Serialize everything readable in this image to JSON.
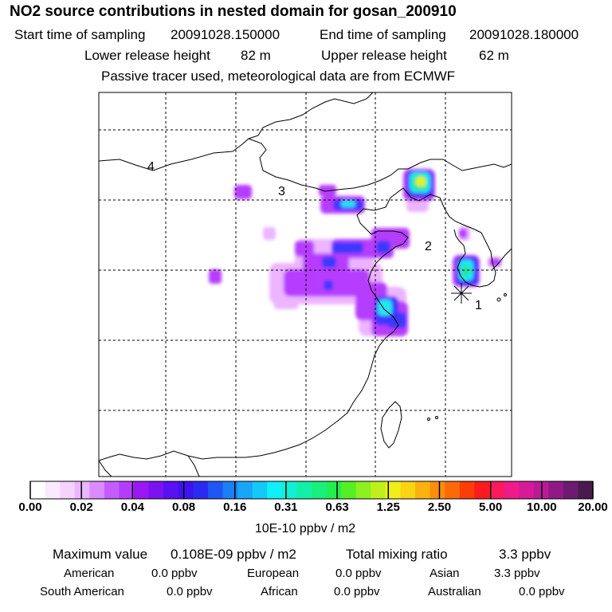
{
  "header": {
    "title": "NO2 source contributions in nested domain for gosan_200910",
    "start_label": "Start time of sampling",
    "start_value": "20091028.150000",
    "end_label": "End time of sampling",
    "end_value": "20091028.180000",
    "lower_label": "Lower release height",
    "lower_value": "82 m",
    "upper_label": "Upper release height",
    "upper_value": "62 m",
    "note": "Passive tracer used, meteorological data are from ECMWF"
  },
  "map": {
    "region_labels": [
      "1",
      "2",
      "3",
      "4"
    ],
    "colors": {
      "coast": "#000000",
      "grid": "#000000",
      "light_violet": "#e9a8ff",
      "violet": "#b63cff",
      "blue": "#3c37ff",
      "cyan": "#21e6f0",
      "green": "#22e88a",
      "yellow": "#e8f020"
    }
  },
  "colorbar": {
    "tick_labels": [
      "0.00",
      "0.02",
      "0.04",
      "0.08",
      "0.16",
      "0.31",
      "0.63",
      "1.25",
      "2.50",
      "5.00",
      "10.00",
      "20.00"
    ],
    "colors": [
      "#ffffff",
      "#fbe9ff",
      "#f5d2ff",
      "#eab6ff",
      "#d98bff",
      "#c45cff",
      "#b53cff",
      "#9b16f4",
      "#7a12f2",
      "#5a10f1",
      "#3d14ef",
      "#2a2bf2",
      "#1f56f4",
      "#1b7ff5",
      "#17a6f7",
      "#13c9f8",
      "#0ff0f8",
      "#0ff0d4",
      "#12f0a8",
      "#18ef7c",
      "#22ee4e",
      "#55ef24",
      "#8cf020",
      "#c0f01c",
      "#f0f018",
      "#fbd313",
      "#fbb10f",
      "#fb8e0c",
      "#fb6a08",
      "#fb3d06",
      "#fb1a1d",
      "#fb1a5b",
      "#f01a8b",
      "#d61a99",
      "#ba1a97",
      "#8f1a85",
      "#6e1a70",
      "#4a1a4e"
    ],
    "unit": "10E-10 ppbv / m2"
  },
  "stats": {
    "max_label": "Maximum value",
    "max_value": "0.108E-09 ppbv / m2",
    "total_label": "Total mixing ratio",
    "total_value": "3.3 ppbv",
    "regions": [
      {
        "name": "American",
        "value": "0.0 ppbv"
      },
      {
        "name": "European",
        "value": "0.0 ppbv"
      },
      {
        "name": "Asian",
        "value": "3.3 ppbv"
      },
      {
        "name": "South American",
        "value": "0.0 ppbv"
      },
      {
        "name": "African",
        "value": "0.0 ppbv"
      },
      {
        "name": "Australian",
        "value": "0.0 ppbv"
      }
    ]
  }
}
